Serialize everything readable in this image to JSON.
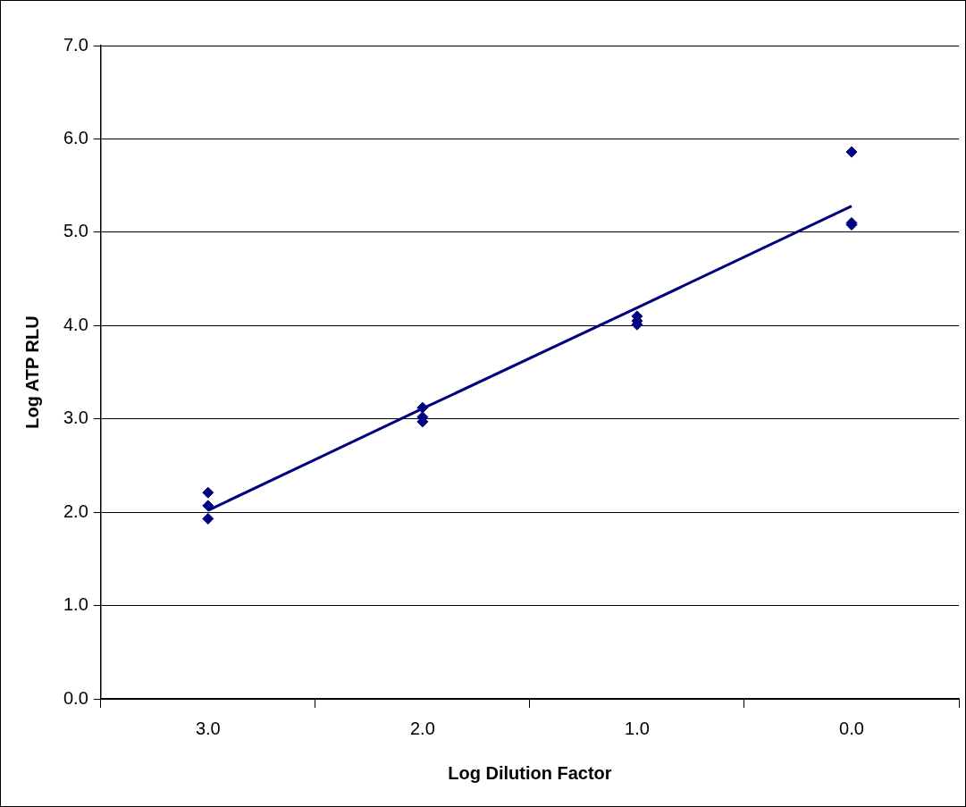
{
  "chart_data": {
    "type": "scatter",
    "categories": [
      "3.0",
      "2.0",
      "1.0",
      "0.0"
    ],
    "xlabel": "Log Dilution Factor",
    "ylabel": "Log ATP RLU",
    "ylim": [
      0,
      7
    ],
    "yticks": [
      {
        "value": 0,
        "label": "0.0"
      },
      {
        "value": 1,
        "label": "1.0"
      },
      {
        "value": 2,
        "label": "2.0"
      },
      {
        "value": 3,
        "label": "3.0"
      },
      {
        "value": 4,
        "label": "4.0"
      },
      {
        "value": 5,
        "label": "5.0"
      },
      {
        "value": 6,
        "label": "6.0"
      },
      {
        "value": 7,
        "label": "7.0"
      }
    ],
    "grid": "y",
    "legend": false,
    "series": [
      {
        "marker": "diamond",
        "color": "#000080",
        "x": [
          "3.0",
          "3.0",
          "3.0",
          "2.0",
          "2.0",
          "2.0",
          "1.0",
          "1.0",
          "1.0",
          "0.0",
          "0.0",
          "0.0"
        ],
        "values": [
          2.21,
          2.07,
          1.93,
          3.12,
          3.02,
          2.97,
          4.1,
          4.05,
          4.01,
          5.86,
          5.1,
          5.08
        ]
      },
      {
        "type": "line",
        "marker": "none",
        "color": "#000080",
        "values": [
          2.02,
          3.11,
          4.19,
          5.28
        ]
      }
    ]
  }
}
